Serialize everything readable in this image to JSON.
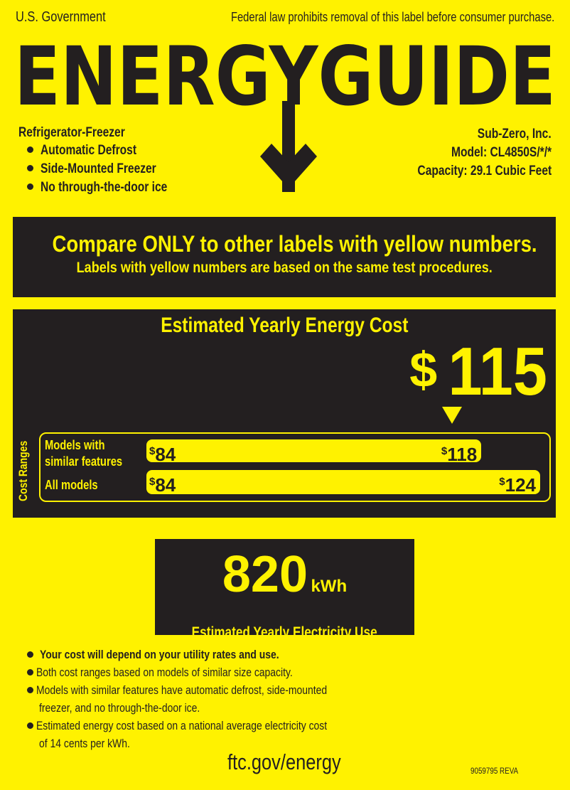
{
  "header": {
    "left": "U.S. Government",
    "right": "Federal law prohibits removal of this label before consumer purchase.",
    "logo_text": "ENERGYGUIDE"
  },
  "product": {
    "type": "Refrigerator-Freezer",
    "features": [
      "Automatic Defrost",
      "Side-Mounted Freezer",
      "No through-the-door ice"
    ],
    "manufacturer": "Sub-Zero, Inc.",
    "model": "Model: CL4850S/*/*",
    "capacity": "Capacity: 29.1 Cubic Feet"
  },
  "compare": {
    "line1": "Compare ONLY to other labels with yellow numbers.",
    "line2": "Labels with yellow numbers are based on the same test procedures."
  },
  "cost": {
    "title": "Estimated Yearly Energy Cost",
    "currency": "$",
    "value": "115",
    "value_number": 115,
    "ranges_label": "Cost Ranges",
    "scale_min": 84,
    "scale_max": 124,
    "ranges": [
      {
        "label_line1": "Models with",
        "label_line2": "similar features",
        "low": "84",
        "high": "118",
        "low_number": 84,
        "high_number": 118
      },
      {
        "label_line1": "All models",
        "label_line2": "",
        "low": "84",
        "high": "124",
        "low_number": 84,
        "high_number": 124
      }
    ]
  },
  "electricity": {
    "value": "820",
    "unit": "kWh",
    "label": "Estimated Yearly Electricity Use"
  },
  "notes": [
    "Your cost will depend on your utility rates and use.",
    "Both cost ranges based on models of similar size capacity.",
    "Models with similar features have automatic defrost, side-mounted",
    "freezer, and no through-the-door ice.",
    "Estimated energy cost based on a national average electricity cost",
    "of 14 cents per kWh."
  ],
  "footer": {
    "url": "ftc.gov/energy",
    "code": "9059795 REVA"
  },
  "colors": {
    "label_yellow": "#fff200",
    "ink": "#231f20"
  }
}
